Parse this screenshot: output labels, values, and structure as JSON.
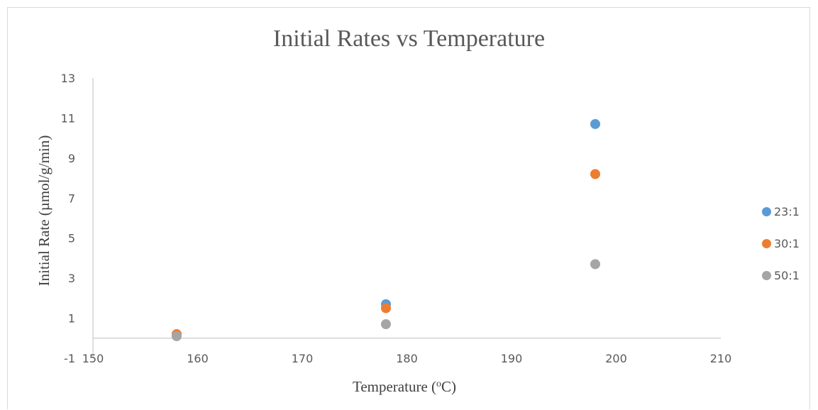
{
  "chart_data": {
    "type": "scatter",
    "title": "Initial Rates vs Temperature",
    "xlabel": "Temperature (",
    "xlabel_sup": "o",
    "xlabel_end": "C)",
    "ylabel": "Initial Rate (µmol/g/min)",
    "xlim": [
      150,
      210
    ],
    "ylim": [
      -1,
      13
    ],
    "xticks": [
      150,
      160,
      170,
      180,
      190,
      200,
      210
    ],
    "yticks": [
      -1,
      1,
      3,
      5,
      7,
      9,
      11,
      13
    ],
    "grid": false,
    "legend_position": "right",
    "series": [
      {
        "name": "23:1",
        "color": "#5b9bd5",
        "x": [
          158,
          178,
          198
        ],
        "y": [
          0.2,
          1.7,
          10.7
        ]
      },
      {
        "name": "30:1",
        "color": "#ed7d31",
        "x": [
          158,
          178,
          198
        ],
        "y": [
          0.2,
          1.5,
          8.2
        ]
      },
      {
        "name": "50:1",
        "color": "#a5a5a5",
        "x": [
          158,
          178,
          198
        ],
        "y": [
          0.1,
          0.7,
          3.7
        ]
      }
    ]
  }
}
